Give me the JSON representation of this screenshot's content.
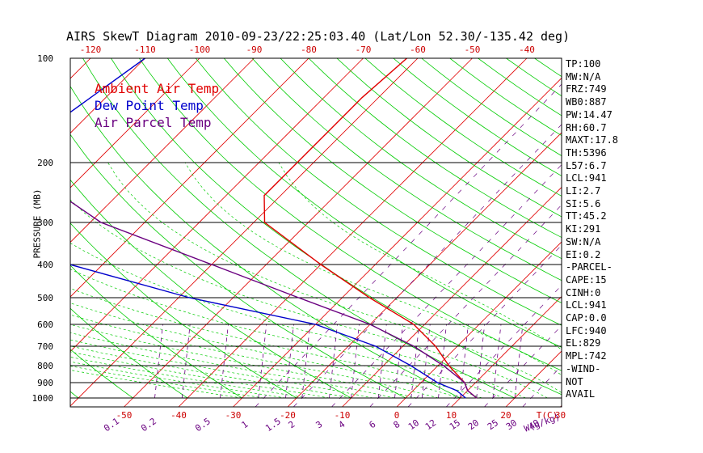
{
  "chart_data": {
    "type": "skewt",
    "title": "AIRS SkewT Diagram 2010-09-23/22:25:03.40 (Lat/Lon 52.30/-135.42 deg)",
    "ylabel": "PRESSURE (MB)",
    "x_unit_label": "T(C)",
    "mixing_unit_label": "W(g/kg)",
    "pressure_ticks": [
      100,
      200,
      300,
      400,
      500,
      600,
      700,
      800,
      900,
      1000
    ],
    "top_temp_ticks": [
      -120,
      -110,
      -100,
      -90,
      -80,
      -70,
      -60,
      -50,
      -40
    ],
    "bottom_temp_ticks": [
      -50,
      -40,
      -30,
      -20,
      -10,
      0,
      10,
      20,
      30
    ],
    "mixing_ratio_ticks": [
      "0.1",
      "0.2",
      "0.5",
      "1",
      "1.5",
      "2",
      "3",
      "4",
      "6",
      "8",
      "10",
      "12",
      "15",
      "20",
      "25",
      "30",
      "40"
    ],
    "legend": [
      {
        "label": "Ambient Air Temp",
        "color": "#e00000"
      },
      {
        "label": "Dew Point Temp",
        "color": "#0000cc"
      },
      {
        "label": "Air Parcel Temp",
        "color": "#6a0080"
      }
    ],
    "series": [
      {
        "name": "Ambient Air Temp",
        "color": "#e00000",
        "points": [
          [
            100,
            -62
          ],
          [
            130,
            -63
          ],
          [
            160,
            -63
          ],
          [
            200,
            -63
          ],
          [
            250,
            -63
          ],
          [
            300,
            -58
          ],
          [
            400,
            -40
          ],
          [
            500,
            -25
          ],
          [
            600,
            -12
          ],
          [
            700,
            -4
          ],
          [
            800,
            2
          ],
          [
            900,
            8
          ],
          [
            950,
            10
          ],
          [
            1000,
            13
          ]
        ]
      },
      {
        "name": "Dew Point Temp",
        "color": "#0000cc",
        "points": [
          [
            100,
            -110
          ],
          [
            160,
            -115
          ],
          [
            200,
            -113
          ],
          [
            250,
            -110
          ],
          [
            300,
            -104
          ],
          [
            400,
            -86
          ],
          [
            500,
            -58
          ],
          [
            600,
            -30
          ],
          [
            700,
            -15
          ],
          [
            800,
            -5
          ],
          [
            900,
            3
          ],
          [
            950,
            8
          ],
          [
            1000,
            11
          ]
        ]
      },
      {
        "name": "Air Parcel Temp",
        "color": "#6a0080",
        "points": [
          [
            100,
            -130
          ],
          [
            200,
            -115
          ],
          [
            300,
            -88
          ],
          [
            400,
            -60
          ],
          [
            500,
            -38
          ],
          [
            600,
            -20
          ],
          [
            700,
            -8
          ],
          [
            800,
            1
          ],
          [
            900,
            8
          ],
          [
            950,
            10
          ],
          [
            1000,
            13
          ]
        ]
      }
    ]
  },
  "side_panel": [
    "TP:100",
    "MW:N/A",
    "FRZ:749",
    "WB0:887",
    "PW:14.47",
    "RH:60.7",
    "MAXT:17.8",
    "TH:5396",
    "L57:6.7",
    "LCL:941",
    "LI:2.7",
    "SI:5.6",
    "TT:45.2",
    "KI:291",
    "SW:N/A",
    "EI:0.2",
    "-PARCEL-",
    "CAPE:15",
    "CINH:0",
    "LCL:941",
    "CAP:0.0",
    "LFC:940",
    "EL:829",
    "MPL:742",
    "-WIND-",
    "NOT",
    "AVAIL"
  ],
  "colors": {
    "isotherm": "#e00000",
    "dry_adiabat": "#00cc00",
    "moist_adiabat": "#00cc00",
    "mixing_ratio": "#6a0080",
    "axis_tick_labels": "#cc0000",
    "mixing_labels": "#6a0080"
  }
}
